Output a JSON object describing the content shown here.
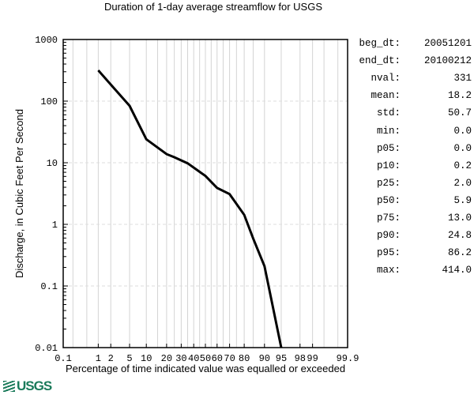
{
  "chart_data": {
    "type": "line",
    "title": "Duration of 1-day average streamflow for USGS",
    "xlabel": "Percentage of time indicated value was equalled or exceeded",
    "ylabel": "Discharge, in Cubic Feet Per Second",
    "x_scale": "normal-probability",
    "y_scale": "log",
    "xlim": [
      0.1,
      99.9
    ],
    "ylim": [
      0.01,
      1000
    ],
    "x_ticks": [
      "0.1",
      "1",
      "2",
      "5",
      "10",
      "20",
      "30",
      "40",
      "50",
      "60",
      "70",
      "80",
      "90",
      "95",
      "98",
      "99",
      "99.9"
    ],
    "y_ticks": [
      "1000",
      "100",
      "10",
      "1",
      "0.1",
      "0.01"
    ],
    "grid": true,
    "series": [
      {
        "color": "#000000",
        "x": [
          1,
          2,
          5,
          10,
          20,
          25,
          35,
          50,
          60,
          70,
          80,
          85,
          90,
          95
        ],
        "y": [
          316,
          186,
          84,
          24,
          13.8,
          12.3,
          9.8,
          6.1,
          3.9,
          3.1,
          1.43,
          0.59,
          0.21,
          0.01
        ]
      }
    ]
  },
  "stats": [
    {
      "key": "beg_dt:",
      "value": "20051201"
    },
    {
      "key": "end_dt:",
      "value": "20100212"
    },
    {
      "key": "nval:",
      "value": "331"
    },
    {
      "key": "mean:",
      "value": "18.2"
    },
    {
      "key": "std:",
      "value": "50.7"
    },
    {
      "key": "min:",
      "value": "0.0"
    },
    {
      "key": "p05:",
      "value": "0.0"
    },
    {
      "key": "p10:",
      "value": "0.2"
    },
    {
      "key": "p25:",
      "value": "2.0"
    },
    {
      "key": "p50:",
      "value": "5.9"
    },
    {
      "key": "p75:",
      "value": "13.0"
    },
    {
      "key": "p90:",
      "value": "24.8"
    },
    {
      "key": "p95:",
      "value": "86.2"
    },
    {
      "key": "max:",
      "value": "414.0"
    }
  ],
  "logo": "USGS"
}
